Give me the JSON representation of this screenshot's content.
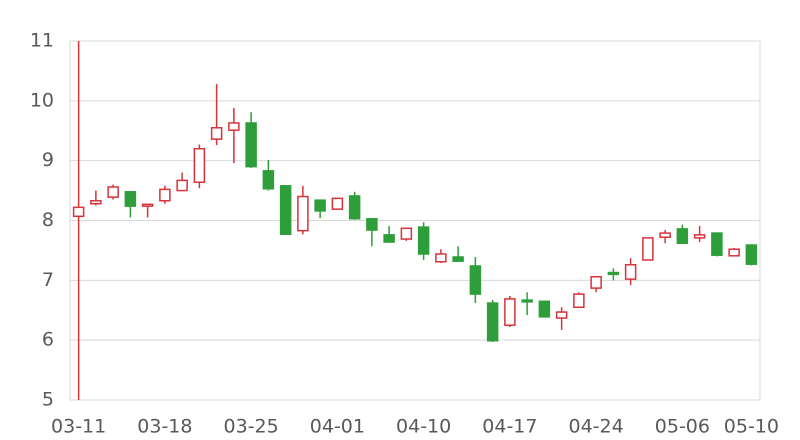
{
  "chart_data": {
    "type": "candlestick",
    "categories": [
      "03-11",
      null,
      null,
      null,
      null,
      "03-18",
      null,
      null,
      null,
      null,
      "03-25",
      null,
      null,
      null,
      null,
      "04-01",
      null,
      null,
      null,
      null,
      "04-10",
      null,
      null,
      null,
      null,
      "04-17",
      null,
      null,
      null,
      null,
      "04-24",
      null,
      null,
      null,
      null,
      "05-06",
      null,
      null,
      null,
      "05-10"
    ],
    "series": [
      {
        "up_color": "#d6333b",
        "down_color": "#2e9e3a",
        "open": [
          8.07,
          8.28,
          8.39,
          8.48,
          8.24,
          8.33,
          8.5,
          8.64,
          9.36,
          9.51,
          9.63,
          8.83,
          8.58,
          7.83,
          8.34,
          8.19,
          8.41,
          8.03,
          7.76,
          7.69,
          7.89,
          7.31,
          7.39,
          7.24,
          6.62,
          6.25,
          6.67,
          6.65,
          6.37,
          6.55,
          6.87,
          7.13,
          7.02,
          7.34,
          7.72,
          7.86,
          7.71,
          7.79,
          7.41,
          7.59
        ],
        "high": [
          11,
          8.5,
          8.6,
          8.48,
          8.27,
          8.58,
          8.8,
          9.27,
          10.28,
          9.88,
          9.81,
          9.01,
          8.58,
          8.58,
          8.34,
          8.37,
          8.48,
          8.03,
          7.91,
          7.87,
          7.97,
          7.52,
          7.57,
          7.39,
          6.67,
          6.74,
          6.8,
          6.65,
          6.55,
          6.8,
          7.06,
          7.2,
          7.37,
          7.71,
          7.84,
          7.93,
          7.91,
          7.79,
          7.54,
          7.59
        ],
        "low": [
          5,
          8.25,
          8.35,
          8.05,
          8.05,
          8.28,
          8.5,
          8.54,
          9.26,
          8.96,
          8.88,
          8.5,
          7.77,
          7.77,
          8.04,
          8.19,
          8.01,
          7.57,
          7.64,
          7.66,
          7.34,
          7.29,
          7.31,
          6.62,
          5.97,
          6.22,
          6.42,
          6.39,
          6.17,
          6.54,
          6.8,
          7.0,
          6.92,
          7.34,
          7.62,
          7.62,
          7.64,
          7.4,
          7.41,
          7.25
        ],
        "close": [
          8.22,
          8.33,
          8.56,
          8.24,
          8.27,
          8.52,
          8.67,
          9.2,
          9.55,
          9.63,
          8.9,
          8.53,
          7.77,
          8.4,
          8.16,
          8.37,
          8.03,
          7.84,
          7.64,
          7.87,
          7.44,
          7.44,
          7.32,
          6.77,
          5.99,
          6.69,
          6.64,
          6.39,
          6.47,
          6.77,
          7.06,
          7.1,
          7.26,
          7.71,
          7.79,
          7.62,
          7.76,
          7.42,
          7.52,
          7.27
        ]
      }
    ],
    "ylim": [
      5,
      11
    ],
    "yticks": [
      5,
      6,
      7,
      8,
      9,
      10,
      11
    ],
    "grid": true
  }
}
